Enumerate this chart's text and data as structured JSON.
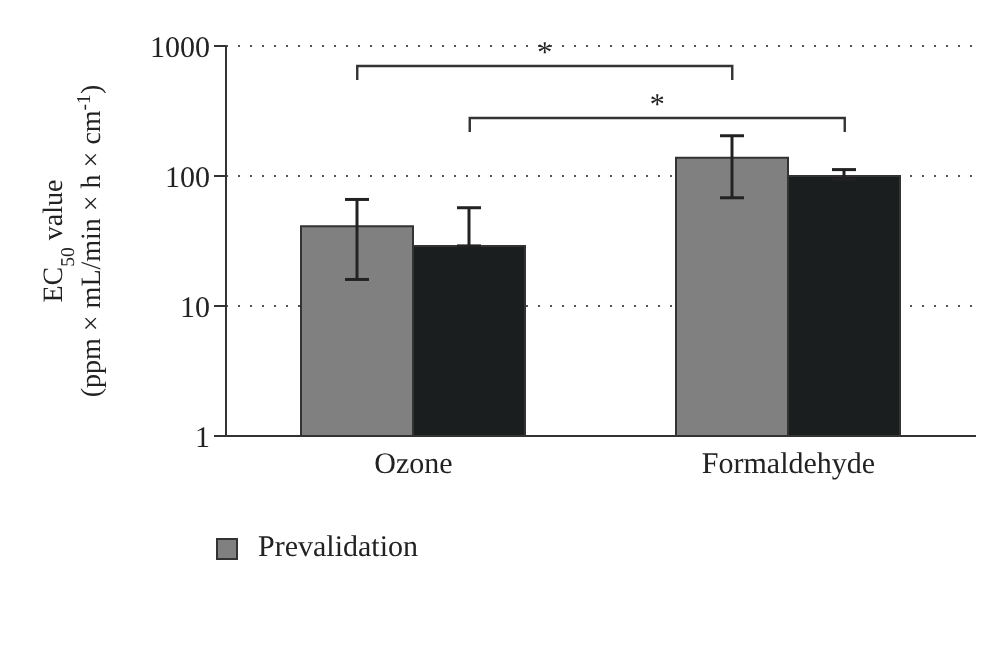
{
  "chart_data": {
    "type": "bar",
    "ylabel": "EC$_{50}$ value\n(ppm × mL/min × h × cm$^{-1}$)",
    "categories": [
      "Ozone",
      "Formaldehyde"
    ],
    "series": [
      {
        "name": "Prevalidation",
        "color": "#808080",
        "values": [
          41,
          138
        ],
        "errors": [
          [
            16,
            66
          ],
          [
            68,
            204
          ]
        ]
      },
      {
        "color": "#1a1e1e",
        "values": [
          29,
          100
        ],
        "errors": [
          [
            29,
            57
          ],
          [
            94,
            112
          ]
        ]
      }
    ],
    "log": "y",
    "ylim": [
      1,
      1000
    ],
    "yticks": [
      1,
      10,
      100,
      1000
    ],
    "grid": "y",
    "legend": "bottom left",
    "annotations": [
      "*",
      "*"
    ]
  }
}
